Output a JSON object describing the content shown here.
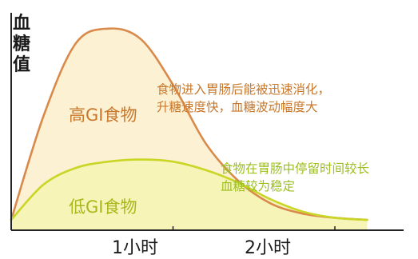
{
  "chart_data": {
    "type": "area",
    "title": "",
    "xlabel": "",
    "ylabel": "血糖值",
    "x_ticks": [
      {
        "x": 1,
        "label": "1小时"
      },
      {
        "x": 2,
        "label": "2小时"
      }
    ],
    "xlim": [
      0,
      2.4
    ],
    "ylim": [
      0,
      1
    ],
    "series": [
      {
        "name": "高GI食物",
        "color": "#d98a4a",
        "fill": "#fcf1d3",
        "x": [
          0,
          0.2,
          0.4,
          0.6,
          0.8,
          1.0,
          1.2,
          1.4,
          1.6,
          1.8,
          2.0,
          2.2
        ],
        "y": [
          0.05,
          0.55,
          0.9,
          0.97,
          0.92,
          0.7,
          0.42,
          0.24,
          0.13,
          0.08,
          0.06,
          0.05
        ]
      },
      {
        "name": "低GI食物",
        "color": "#c9d626",
        "fill": "#f6f4b3",
        "x": [
          0,
          0.2,
          0.4,
          0.6,
          0.8,
          1.0,
          1.2,
          1.4,
          1.6,
          1.8,
          2.0,
          2.2
        ],
        "y": [
          0.05,
          0.22,
          0.3,
          0.33,
          0.34,
          0.33,
          0.29,
          0.23,
          0.15,
          0.09,
          0.06,
          0.05
        ]
      }
    ],
    "annotations": [
      {
        "series": "高GI食物",
        "lines": [
          "食物进入胃肠后能被迅速消化，",
          "升糖速度快，血糖波动幅度大"
        ],
        "color": "#c8782c"
      },
      {
        "series": "低GI食物",
        "lines": [
          "食物在胃肠中停留时间较长",
          "血糖较为稳定"
        ],
        "color": "#9bbf1e"
      }
    ],
    "grid": false,
    "legend": "none"
  }
}
